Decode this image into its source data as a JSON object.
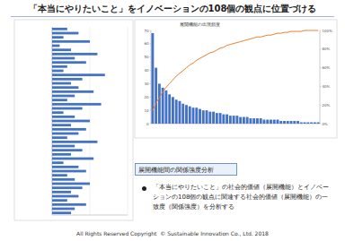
{
  "title": "「本当にやりたいこと」をイノベーションの108個の観点に位置づける",
  "chart_data": [
    {
      "type": "bar",
      "orientation": "horizontal",
      "tick_labels": false,
      "grid": true,
      "color": "#4472c4",
      "categories": [
        null,
        null,
        null,
        null,
        null,
        null,
        null,
        null,
        null,
        null,
        null,
        null,
        null,
        null,
        null,
        null,
        null,
        null,
        null,
        null,
        null,
        null,
        null,
        null,
        null,
        null,
        null,
        null,
        null,
        null,
        null,
        null,
        null,
        null,
        null,
        null,
        null,
        null,
        null,
        null,
        null,
        null,
        null,
        null,
        null
      ],
      "values": [
        20,
        35,
        15,
        50,
        10,
        25,
        60,
        30,
        45,
        20,
        15,
        70,
        40,
        25,
        35,
        55,
        30,
        20,
        65,
        40,
        15,
        30,
        50,
        25,
        45,
        35,
        20,
        60,
        30,
        40,
        25,
        55,
        15,
        35,
        45,
        20,
        30,
        50,
        40,
        25,
        35,
        20,
        45,
        30,
        25
      ],
      "xlim": [
        0,
        100
      ],
      "xticks": [
        0,
        50,
        100
      ]
    },
    {
      "type": "bar",
      "title": "展開機能の出現頻度",
      "grid": false,
      "categories": [
        null,
        null,
        null,
        null,
        null,
        null,
        null,
        null,
        null,
        null,
        null,
        null,
        null,
        null,
        null,
        null,
        null,
        null,
        null,
        null,
        null,
        null,
        null,
        null,
        null,
        null,
        null,
        null,
        null,
        null,
        null,
        null,
        null,
        null,
        null,
        null,
        null,
        null,
        null,
        null,
        null,
        null,
        null,
        null,
        null,
        null,
        null,
        null,
        null,
        null
      ],
      "series": [
        {
          "type": "bar",
          "color": "#4472c4",
          "values": [
            68,
            42,
            30,
            27,
            25,
            22,
            20,
            18,
            17,
            15,
            14,
            13,
            12,
            12,
            11,
            10,
            10,
            9,
            9,
            8,
            8,
            7,
            7,
            6,
            6,
            6,
            5,
            5,
            5,
            4,
            4,
            4,
            4,
            3,
            3,
            3,
            3,
            3,
            2,
            2,
            2,
            2,
            2,
            2,
            1,
            1,
            1,
            1,
            1,
            1
          ]
        },
        {
          "type": "line",
          "axis": "y2",
          "color": "#ed7d31",
          "values": [
            14,
            22,
            28,
            34,
            39,
            43,
            47,
            51,
            54,
            57,
            60,
            63,
            65,
            68,
            70,
            72,
            74,
            76,
            77,
            79,
            81,
            82,
            84,
            85,
            86,
            87,
            88,
            89,
            90,
            91,
            92,
            93,
            93,
            94,
            95,
            95,
            96,
            97,
            97,
            98,
            98,
            99,
            99,
            99,
            99,
            100,
            100,
            100,
            100,
            100
          ]
        }
      ],
      "ylim": [
        0,
        70
      ],
      "yticks": [
        0,
        10,
        20,
        30,
        40,
        50,
        60,
        70
      ],
      "y2lim": [
        0,
        100
      ],
      "y2ticks": [
        {
          "value": 0,
          "label": "0%"
        },
        {
          "value": 20,
          "label": "20%"
        },
        {
          "value": 40,
          "label": "40%"
        },
        {
          "value": 60,
          "label": "60%"
        },
        {
          "value": 80,
          "label": "80%"
        },
        {
          "value": 100,
          "label": "100%"
        }
      ]
    }
  ],
  "section_heading": "展開機能間の関係強度分析",
  "bullet": "「本当にやりたいこと」の社会的価値（展開機能）とイノベーションの108個の観点に関連する社会的価値（展開機能）の一致度（関係強度）を分析する",
  "footer": "All Rights Reserved Copyright  © Sustainable Innovation Co., Ltd. 2018"
}
